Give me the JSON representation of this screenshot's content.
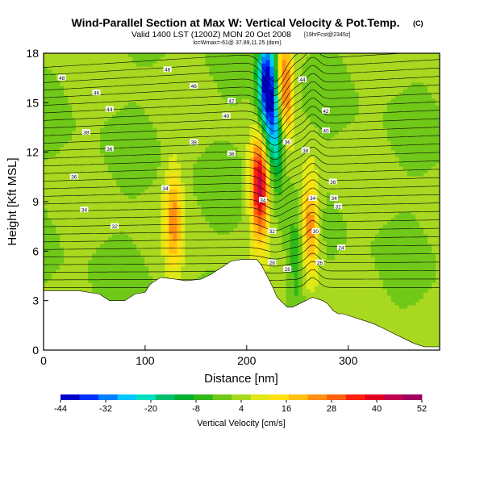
{
  "title": {
    "main": "Wind-Parallel Section at Max W: Vertical Velocity & Pot.Temp.",
    "mark": "(C)",
    "line2": "Valid 1400 LST (1200Z) MON 20 Oct 2008",
    "line2_small": "[19hrFcst@2345z]",
    "line3": "lo=Wmax=-61@ 37.89,11.25 (dom)"
  },
  "colors": {
    "background": "#ffffff",
    "terrain": "#ffffff",
    "contour": "#000000"
  },
  "chart_data": {
    "type": "heatmap",
    "xlabel": "Distance [nm]",
    "ylabel": "Height [Kft MSL]",
    "xlim": [
      0,
      390
    ],
    "ylim": [
      0,
      18
    ],
    "x_ticks": [
      0,
      100,
      200,
      300
    ],
    "y_ticks": [
      0,
      3,
      6,
      9,
      12,
      15,
      18
    ],
    "x_tick_labels": [
      "0",
      "100",
      "200",
      "300"
    ],
    "y_tick_labels": [
      "0",
      "3",
      "6",
      "9",
      "12",
      "15",
      "18"
    ],
    "colorbar": {
      "label": "Vertical Velocity [cm/s]",
      "tick_values": [
        -44,
        -32,
        -20,
        -8,
        4,
        16,
        28,
        40,
        52
      ],
      "tick_labels": [
        "-44",
        "-32",
        "-20",
        "-8",
        "4",
        "16",
        "28",
        "40",
        "52"
      ],
      "range": [
        -44,
        52
      ],
      "colors": [
        "#0000c8",
        "#0030ff",
        "#0080ff",
        "#00c8ff",
        "#00e0c0",
        "#00c070",
        "#00b030",
        "#30b818",
        "#70c818",
        "#a8d820",
        "#e0e818",
        "#ffe010",
        "#ffc010",
        "#ff9010",
        "#ff6010",
        "#ff2010",
        "#e00020",
        "#c00050",
        "#a00060"
      ]
    },
    "terrain_profile": {
      "x": [
        0,
        35,
        55,
        65,
        80,
        90,
        100,
        105,
        115,
        130,
        140,
        155,
        165,
        175,
        185,
        195,
        210,
        215,
        220,
        225,
        230,
        240,
        245,
        255,
        265,
        275,
        280,
        285,
        290,
        295,
        305,
        315,
        325,
        335,
        345,
        355,
        365,
        375,
        390
      ],
      "height_kft": [
        3.6,
        3.6,
        3.4,
        3.0,
        3.0,
        3.4,
        3.5,
        4.0,
        4.4,
        4.3,
        4.2,
        4.3,
        4.6,
        5.0,
        5.4,
        5.5,
        5.5,
        5.1,
        4.5,
        3.9,
        3.2,
        2.6,
        2.6,
        2.9,
        3.2,
        3.0,
        2.8,
        2.4,
        2.2,
        2.2,
        2.0,
        1.8,
        1.6,
        1.3,
        1.0,
        0.7,
        0.4,
        0.2,
        0.2
      ]
    },
    "velocity_features": [
      {
        "label": "strong downdraft",
        "x": 220,
        "z": 16.0,
        "w": -44
      },
      {
        "label": "downdraft core",
        "x": 230,
        "z": 13.5,
        "w": -34
      },
      {
        "label": "updraft",
        "x": 236,
        "z": 15.5,
        "w": 40
      },
      {
        "label": "updraft",
        "x": 213,
        "z": 10.0,
        "w": 44
      },
      {
        "label": "updraft",
        "x": 262,
        "z": 7.5,
        "w": 28
      },
      {
        "label": "updraft",
        "x": 128,
        "z": 8.0,
        "w": 22
      },
      {
        "label": "weak sinking",
        "x": 250,
        "z": 5.5,
        "w": -8
      }
    ],
    "isentrope_labels": [
      {
        "text": "48",
        "x": 18,
        "z": 16.5
      },
      {
        "text": "48",
        "x": 122,
        "z": 17.0
      },
      {
        "text": "46",
        "x": 52,
        "z": 15.6
      },
      {
        "text": "46",
        "x": 148,
        "z": 16.0
      },
      {
        "text": "44",
        "x": 65,
        "z": 14.6
      },
      {
        "text": "44",
        "x": 255,
        "z": 16.4
      },
      {
        "text": "42",
        "x": 185,
        "z": 15.1
      },
      {
        "text": "42",
        "x": 278,
        "z": 14.5
      },
      {
        "text": "40",
        "x": 180,
        "z": 14.2
      },
      {
        "text": "40",
        "x": 278,
        "z": 13.3
      },
      {
        "text": "38",
        "x": 42,
        "z": 13.2
      },
      {
        "text": "38",
        "x": 148,
        "z": 12.6
      },
      {
        "text": "38",
        "x": 258,
        "z": 12.1
      },
      {
        "text": "36",
        "x": 65,
        "z": 12.2
      },
      {
        "text": "36",
        "x": 185,
        "z": 11.9
      },
      {
        "text": "36",
        "x": 240,
        "z": 12.6
      },
      {
        "text": "36",
        "x": 285,
        "z": 10.2
      },
      {
        "text": "36",
        "x": 30,
        "z": 10.5
      },
      {
        "text": "34",
        "x": 120,
        "z": 9.8
      },
      {
        "text": "34",
        "x": 216,
        "z": 9.1
      },
      {
        "text": "34",
        "x": 265,
        "z": 9.2
      },
      {
        "text": "34",
        "x": 286,
        "z": 9.2
      },
      {
        "text": "34",
        "x": 40,
        "z": 8.5
      },
      {
        "text": "32",
        "x": 70,
        "z": 7.5
      },
      {
        "text": "32",
        "x": 225,
        "z": 7.2
      },
      {
        "text": "32",
        "x": 290,
        "z": 8.7
      },
      {
        "text": "30",
        "x": 268,
        "z": 7.2
      },
      {
        "text": "28",
        "x": 225,
        "z": 5.3
      },
      {
        "text": "28",
        "x": 240,
        "z": 4.9
      },
      {
        "text": "26",
        "x": 272,
        "z": 5.3
      },
      {
        "text": "24",
        "x": 293,
        "z": 6.2
      }
    ]
  }
}
